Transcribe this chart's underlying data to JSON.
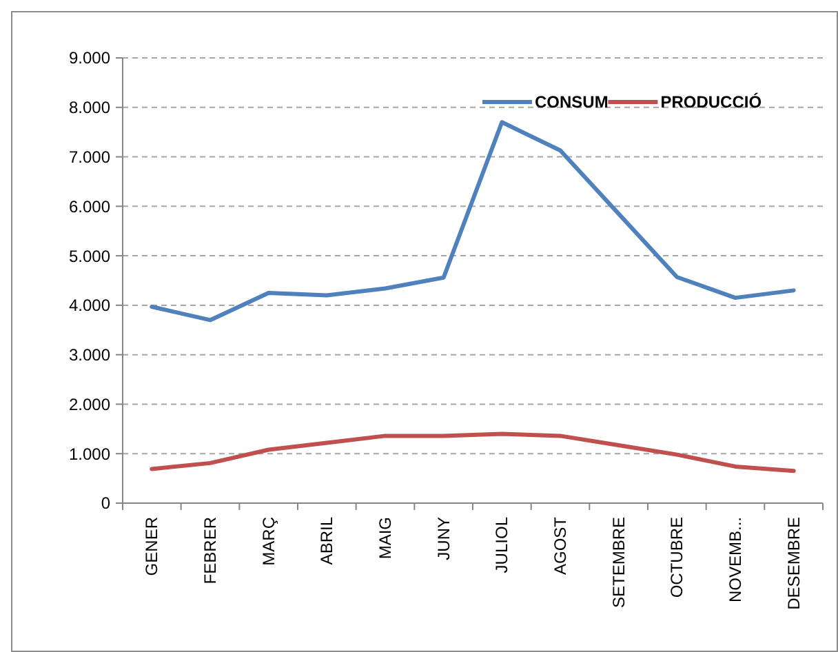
{
  "chart_data": {
    "type": "line",
    "categories": [
      "GENER",
      "FEBRER",
      "MARÇ",
      "ABRIL",
      "MAIG",
      "JUNY",
      "JULIOL",
      "AGOST",
      "SETEMBRE",
      "OCTUBRE",
      "NOVEMB...",
      "DESEMBRE"
    ],
    "series": [
      {
        "name": "CONSUM",
        "color": "#4f81bd",
        "values": [
          3970,
          3700,
          4250,
          4200,
          4340,
          4560,
          7700,
          7130,
          5850,
          4570,
          4150,
          4300
        ]
      },
      {
        "name": "PRODUCCIÓ",
        "color": "#c0504d",
        "values": [
          690,
          810,
          1080,
          1220,
          1360,
          1360,
          1400,
          1360,
          1170,
          980,
          740,
          650
        ]
      }
    ],
    "ylim": [
      0,
      9000
    ],
    "yticks": [
      0,
      {
        "value": 1000,
        "label": "1.000"
      },
      {
        "value": 2000,
        "label": "2.000"
      },
      {
        "value": 3000,
        "label": "3.000"
      },
      {
        "value": 4000,
        "label": "4.000"
      },
      {
        "value": 5000,
        "label": "5.000"
      },
      {
        "value": 6000,
        "label": "6.000"
      },
      {
        "value": 7000,
        "label": "7.000"
      },
      {
        "value": 8000,
        "label": "8.000"
      },
      {
        "value": 9000,
        "label": "9.000"
      }
    ],
    "grid": "y",
    "legend": "top right",
    "marker": "none",
    "line_style": "solid"
  }
}
